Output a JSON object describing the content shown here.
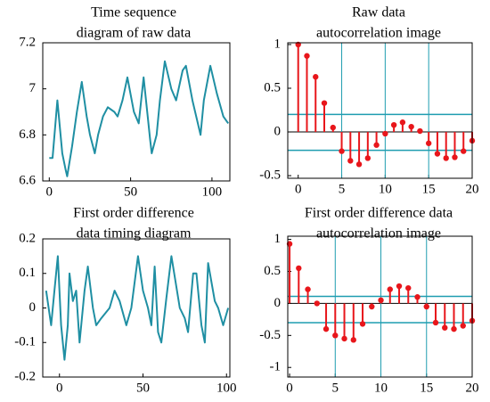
{
  "chart_data": [
    {
      "type": "line",
      "title": [
        "Time sequence",
        "diagram of raw data"
      ],
      "color": "#1f8fa3",
      "x": [
        0,
        2,
        5,
        8,
        10,
        11,
        14,
        17,
        20,
        23,
        25,
        28,
        30,
        33,
        36,
        40,
        42,
        45,
        48,
        52,
        55,
        58,
        62,
        63,
        66,
        68,
        71,
        75,
        78,
        82,
        84,
        88,
        93,
        95,
        99,
        103,
        107,
        110
      ],
      "values": [
        6.7,
        6.7,
        6.95,
        6.72,
        6.65,
        6.62,
        6.75,
        6.9,
        7.03,
        6.88,
        6.8,
        6.72,
        6.8,
        6.88,
        6.92,
        6.9,
        6.88,
        6.95,
        7.05,
        6.9,
        6.85,
        7.05,
        6.78,
        6.72,
        6.8,
        6.95,
        7.12,
        7.0,
        6.95,
        7.08,
        7.1,
        6.95,
        6.8,
        6.95,
        7.1,
        6.98,
        6.88,
        6.85
      ],
      "xlim": [
        -4,
        111
      ],
      "ylim": [
        6.6,
        7.2
      ],
      "xticks": [
        0,
        50,
        100
      ],
      "yticks": [
        6.6,
        6.8,
        7,
        7.2
      ]
    },
    {
      "type": "stem",
      "title": [
        "Raw data",
        "autocorrelation image"
      ],
      "color": "#e8161b",
      "band_color": "#1f9db0",
      "x": [
        0,
        1,
        2,
        3,
        4,
        5,
        6,
        7,
        8,
        9,
        10,
        11,
        12,
        13,
        14,
        15,
        16,
        17,
        18,
        19,
        20
      ],
      "values": [
        1,
        0.87,
        0.63,
        0.33,
        0.05,
        -0.22,
        -0.33,
        -0.37,
        -0.3,
        -0.15,
        -0.02,
        0.08,
        0.11,
        0.06,
        0.01,
        -0.13,
        -0.25,
        -0.3,
        -0.29,
        -0.22,
        -0.1
      ],
      "bounds": [
        0.2,
        -0.21
      ],
      "xlim": [
        -1.2,
        20
      ],
      "ylim": [
        -0.53,
        1.02
      ],
      "xticks": [
        0,
        5,
        10,
        15,
        20
      ],
      "yticks": [
        -0.5,
        0,
        0.5,
        1
      ],
      "grid": true
    },
    {
      "type": "line",
      "title": [
        "First order difference",
        "data timing diagram"
      ],
      "color": "#1f8fa3",
      "x": [
        -8,
        -5,
        -3,
        -1,
        1,
        3,
        5,
        6,
        8,
        10,
        12,
        15,
        17,
        20,
        22,
        25,
        30,
        33,
        36,
        40,
        43,
        47,
        50,
        53,
        55,
        57,
        59,
        61,
        64,
        67,
        72,
        75,
        77,
        80,
        82,
        85,
        87,
        89,
        93,
        95,
        98,
        101
      ],
      "values": [
        0.05,
        -0.05,
        0.05,
        0.15,
        -0.05,
        -0.15,
        -0.05,
        0.1,
        0.02,
        0.05,
        -0.1,
        0.05,
        0.12,
        0.0,
        -0.05,
        -0.03,
        0.0,
        0.05,
        0.02,
        -0.05,
        0.0,
        0.15,
        0.05,
        0.0,
        -0.05,
        0.12,
        -0.07,
        -0.1,
        0.03,
        0.15,
        0.0,
        -0.03,
        -0.07,
        0.1,
        0.1,
        -0.05,
        -0.1,
        0.13,
        0.02,
        0.0,
        -0.05,
        0.0
      ],
      "xlim": [
        -10,
        102
      ],
      "ylim": [
        -0.2,
        0.2
      ],
      "xticks": [
        0,
        50,
        100
      ],
      "yticks": [
        -0.2,
        -0.1,
        0,
        0.1,
        0.2
      ]
    },
    {
      "type": "stem",
      "title": [
        "First order difference data",
        "autocorrelation image"
      ],
      "color": "#e8161b",
      "band_color": "#1f9db0",
      "x": [
        0,
        1,
        2,
        3,
        4,
        5,
        6,
        7,
        8,
        9,
        10,
        11,
        12,
        13,
        14,
        15,
        16,
        17,
        18,
        19,
        20
      ],
      "values": [
        0.93,
        0.55,
        0.22,
        0.0,
        -0.4,
        -0.5,
        -0.55,
        -0.57,
        -0.32,
        -0.05,
        0.05,
        0.22,
        0.27,
        0.24,
        0.1,
        -0.05,
        -0.3,
        -0.38,
        -0.4,
        -0.35,
        -0.27
      ],
      "bounds": [
        0.11,
        -0.3
      ],
      "xlim": [
        -0.2,
        20
      ],
      "ylim": [
        -1.15,
        1.05
      ],
      "xticks": [
        0,
        5,
        10,
        15,
        20
      ],
      "yticks": [
        -1,
        -0.5,
        0,
        0.5,
        1
      ],
      "grid": true
    }
  ]
}
